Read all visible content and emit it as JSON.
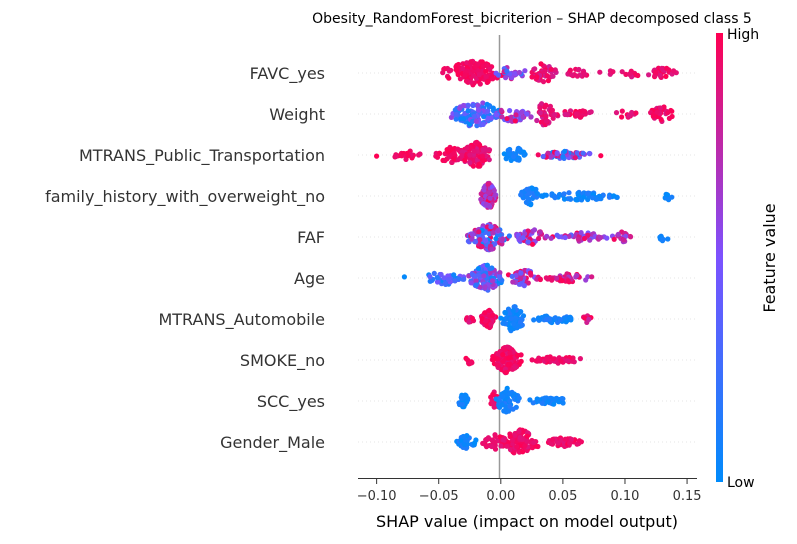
{
  "chart_data": {
    "type": "scatter",
    "subtype": "shap-beeswarm",
    "title": "Obesity_RandomForest_bicriterion – SHAP decomposed class 5",
    "xlabel": "SHAP value (impact on model output)",
    "xlim": [
      -0.115,
      0.158
    ],
    "xticks": [
      {
        "value": -0.1,
        "label": "−0.10"
      },
      {
        "value": -0.05,
        "label": "−0.05"
      },
      {
        "value": 0.0,
        "label": "0.00"
      },
      {
        "value": 0.05,
        "label": "0.05"
      },
      {
        "value": 0.1,
        "label": "0.10"
      },
      {
        "value": 0.15,
        "label": "0.15"
      }
    ],
    "colorbar": {
      "label": "Feature value",
      "high_label": "High",
      "low_label": "Low",
      "low_color": "#008bfb",
      "mid_color": "#7c52ff",
      "high_color": "#ff0052"
    },
    "features": [
      {
        "name": "FAVC_yes",
        "clusters": [
          {
            "c": -0.022,
            "w": 0.025,
            "n": 140,
            "v": [
              0.9,
              1.0
            ],
            "h": 1.0
          },
          {
            "c": 0.008,
            "w": 0.012,
            "n": 30,
            "v": [
              0.2,
              0.9
            ],
            "h": 0.5
          },
          {
            "c": 0.035,
            "w": 0.01,
            "n": 45,
            "v": [
              0.8,
              1.0
            ],
            "h": 0.9
          },
          {
            "c": 0.06,
            "w": 0.012,
            "n": 18,
            "v": [
              0.85,
              1.0
            ],
            "h": 0.35
          },
          {
            "c": 0.085,
            "w": 0.006,
            "n": 6,
            "v": [
              0.85,
              1.0
            ],
            "h": 0.3
          },
          {
            "c": 0.105,
            "w": 0.01,
            "n": 10,
            "v": [
              0.85,
              1.0
            ],
            "h": 0.3
          },
          {
            "c": 0.13,
            "w": 0.012,
            "n": 30,
            "v": [
              0.85,
              1.0
            ],
            "h": 0.45
          }
        ]
      },
      {
        "name": "Weight",
        "clusters": [
          {
            "c": -0.02,
            "w": 0.022,
            "n": 110,
            "v": [
              0.0,
              0.6
            ],
            "h": 1.0
          },
          {
            "c": 0.01,
            "w": 0.015,
            "n": 40,
            "v": [
              0.3,
              1.0
            ],
            "h": 0.6
          },
          {
            "c": 0.035,
            "w": 0.01,
            "n": 40,
            "v": [
              0.8,
              1.0
            ],
            "h": 0.9
          },
          {
            "c": 0.06,
            "w": 0.02,
            "n": 25,
            "v": [
              0.85,
              1.0
            ],
            "h": 0.3
          },
          {
            "c": 0.1,
            "w": 0.012,
            "n": 10,
            "v": [
              0.85,
              1.0
            ],
            "h": 0.3
          },
          {
            "c": 0.13,
            "w": 0.012,
            "n": 35,
            "v": [
              0.85,
              1.0
            ],
            "h": 0.6
          }
        ]
      },
      {
        "name": "MTRANS_Public_Transportation",
        "clusters": [
          {
            "c": -0.1,
            "w": 0.002,
            "n": 1,
            "v": [
              0.95,
              1.0
            ],
            "h": 0.1
          },
          {
            "c": -0.075,
            "w": 0.012,
            "n": 22,
            "v": [
              0.9,
              1.0
            ],
            "h": 0.35
          },
          {
            "c": -0.04,
            "w": 0.015,
            "n": 40,
            "v": [
              0.9,
              1.0
            ],
            "h": 0.6
          },
          {
            "c": -0.02,
            "w": 0.012,
            "n": 110,
            "v": [
              0.85,
              1.0
            ],
            "h": 1.0
          },
          {
            "c": 0.012,
            "w": 0.01,
            "n": 35,
            "v": [
              0.0,
              0.15
            ],
            "h": 0.7
          },
          {
            "c": 0.05,
            "w": 0.022,
            "n": 55,
            "v": [
              0.0,
              1.0
            ],
            "h": 0.3
          },
          {
            "c": 0.08,
            "w": 0.002,
            "n": 1,
            "v": [
              0.95,
              1.0
            ],
            "h": 0.1
          }
        ]
      },
      {
        "name": "family_history_with_overweight_no",
        "clusters": [
          {
            "c": -0.01,
            "w": 0.007,
            "n": 95,
            "v": [
              0.5,
              1.0
            ],
            "h": 1.0
          },
          {
            "c": 0.025,
            "w": 0.01,
            "n": 35,
            "v": [
              0.0,
              0.15
            ],
            "h": 0.7
          },
          {
            "c": 0.065,
            "w": 0.03,
            "n": 60,
            "v": [
              0.0,
              0.15
            ],
            "h": 0.35
          },
          {
            "c": 0.135,
            "w": 0.004,
            "n": 8,
            "v": [
              0.0,
              0.1
            ],
            "h": 0.3
          }
        ]
      },
      {
        "name": "FAF",
        "clusters": [
          {
            "c": -0.01,
            "w": 0.017,
            "n": 120,
            "v": [
              0.0,
              1.0
            ],
            "h": 1.0
          },
          {
            "c": 0.025,
            "w": 0.015,
            "n": 45,
            "v": [
              0.3,
              1.0
            ],
            "h": 0.6
          },
          {
            "c": 0.065,
            "w": 0.025,
            "n": 45,
            "v": [
              0.35,
              1.0
            ],
            "h": 0.35
          },
          {
            "c": 0.098,
            "w": 0.01,
            "n": 18,
            "v": [
              0.55,
              1.0
            ],
            "h": 0.4
          },
          {
            "c": 0.13,
            "w": 0.007,
            "n": 8,
            "v": [
              0.0,
              0.1
            ],
            "h": 0.3
          }
        ]
      },
      {
        "name": "Age",
        "clusters": [
          {
            "c": -0.078,
            "w": 0.002,
            "n": 1,
            "v": [
              0.0,
              0.05
            ],
            "h": 0.1
          },
          {
            "c": -0.045,
            "w": 0.02,
            "n": 45,
            "v": [
              0.0,
              0.5
            ],
            "h": 0.5
          },
          {
            "c": -0.012,
            "w": 0.014,
            "n": 110,
            "v": [
              0.0,
              0.7
            ],
            "h": 1.0
          },
          {
            "c": 0.02,
            "w": 0.015,
            "n": 40,
            "v": [
              0.3,
              1.0
            ],
            "h": 0.6
          },
          {
            "c": 0.055,
            "w": 0.02,
            "n": 40,
            "v": [
              0.6,
              1.0
            ],
            "h": 0.35
          }
        ]
      },
      {
        "name": "MTRANS_Automobile",
        "clusters": [
          {
            "c": -0.025,
            "w": 0.004,
            "n": 10,
            "v": [
              0.85,
              1.0
            ],
            "h": 0.3
          },
          {
            "c": -0.01,
            "w": 0.006,
            "n": 70,
            "v": [
              0.85,
              1.0
            ],
            "h": 0.7
          },
          {
            "c": 0.01,
            "w": 0.01,
            "n": 70,
            "v": [
              0.0,
              0.15
            ],
            "h": 1.0
          },
          {
            "c": 0.045,
            "w": 0.02,
            "n": 50,
            "v": [
              0.0,
              0.15
            ],
            "h": 0.3
          },
          {
            "c": 0.07,
            "w": 0.005,
            "n": 8,
            "v": [
              0.7,
              1.0
            ],
            "h": 0.3
          }
        ]
      },
      {
        "name": "SMOKE_no",
        "clusters": [
          {
            "c": -0.025,
            "w": 0.004,
            "n": 8,
            "v": [
              0.9,
              1.0
            ],
            "h": 0.3
          },
          {
            "c": 0.005,
            "w": 0.012,
            "n": 130,
            "v": [
              0.88,
              1.0
            ],
            "h": 1.0
          },
          {
            "c": 0.045,
            "w": 0.02,
            "n": 50,
            "v": [
              0.88,
              1.0
            ],
            "h": 0.3
          }
        ]
      },
      {
        "name": "SCC_yes",
        "clusters": [
          {
            "c": -0.03,
            "w": 0.004,
            "n": 25,
            "v": [
              0.0,
              0.12
            ],
            "h": 0.6
          },
          {
            "c": -0.005,
            "w": 0.005,
            "n": 15,
            "v": [
              0.88,
              1.0
            ],
            "h": 0.7
          },
          {
            "c": 0.005,
            "w": 0.01,
            "n": 60,
            "v": [
              0.0,
              0.15
            ],
            "h": 1.0
          },
          {
            "c": 0.04,
            "w": 0.018,
            "n": 45,
            "v": [
              0.0,
              0.15
            ],
            "h": 0.3
          }
        ]
      },
      {
        "name": "Gender_Male",
        "clusters": [
          {
            "c": -0.028,
            "w": 0.008,
            "n": 30,
            "v": [
              0.0,
              0.15
            ],
            "h": 0.5
          },
          {
            "c": -0.005,
            "w": 0.012,
            "n": 40,
            "v": [
              0.88,
              1.0
            ],
            "h": 0.6
          },
          {
            "c": 0.015,
            "w": 0.015,
            "n": 90,
            "v": [
              0.88,
              1.0
            ],
            "h": 1.0
          },
          {
            "c": 0.05,
            "w": 0.015,
            "n": 45,
            "v": [
              0.88,
              1.0
            ],
            "h": 0.35
          }
        ]
      }
    ]
  }
}
